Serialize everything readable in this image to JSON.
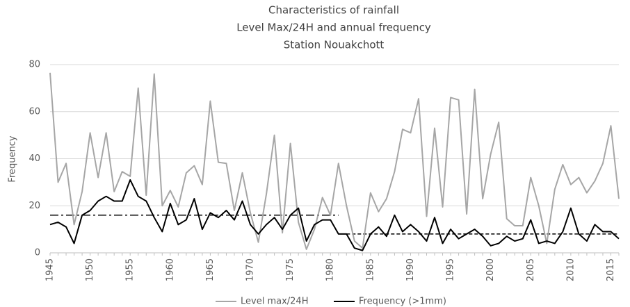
{
  "chart_data": {
    "type": "line",
    "title": [
      "Characteristics of rainfall",
      "Level Max/24H and annual frequency",
      "Station Nouakchott"
    ],
    "y_label": "Frequency",
    "x": [
      1945,
      1946,
      1947,
      1948,
      1949,
      1950,
      1951,
      1952,
      1953,
      1954,
      1955,
      1956,
      1957,
      1958,
      1959,
      1960,
      1961,
      1962,
      1963,
      1964,
      1965,
      1966,
      1967,
      1968,
      1969,
      1970,
      1971,
      1972,
      1973,
      1974,
      1975,
      1976,
      1977,
      1978,
      1979,
      1980,
      1981,
      1982,
      1983,
      1984,
      1985,
      1986,
      1987,
      1988,
      1989,
      1990,
      1991,
      1992,
      1993,
      1994,
      1995,
      1996,
      1997,
      1998,
      1999,
      2000,
      2001,
      2002,
      2003,
      2004,
      2005,
      2006,
      2007,
      2008,
      2009,
      2010,
      2011,
      2012,
      2013,
      2014,
      2015,
      2016
    ],
    "series": [
      {
        "name": "Level max/24H",
        "color": "#a6a6a6",
        "values": [
          76.5,
          30,
          38,
          12,
          26,
          51,
          32,
          51,
          26,
          34.5,
          32.5,
          70,
          24.5,
          76,
          20,
          26.5,
          19.5,
          34,
          37,
          29,
          64.5,
          38.5,
          38,
          18,
          34,
          17,
          4.5,
          25,
          50,
          8.5,
          46.5,
          13,
          1.5,
          10,
          23.5,
          16,
          38,
          20,
          5,
          2,
          25.5,
          17.5,
          23,
          34.5,
          52.5,
          51,
          65.5,
          15.5,
          53,
          19.5,
          66,
          65,
          16.5,
          69.5,
          23,
          42,
          55.5,
          14.5,
          11.5,
          11.5,
          32,
          20,
          4,
          27,
          37.5,
          29,
          32,
          25.5,
          30.5,
          38,
          54,
          23
        ]
      },
      {
        "name": "Frequency (>1mm)",
        "color": "#000000",
        "values": [
          12,
          13,
          11,
          4,
          16,
          18,
          22,
          24,
          22,
          22,
          31,
          24,
          22,
          15,
          9,
          21,
          12,
          14,
          23,
          10,
          17,
          15,
          18,
          14,
          22,
          12,
          8,
          12,
          15,
          10,
          16,
          19,
          5,
          12,
          14,
          14,
          8,
          8,
          2,
          1,
          8,
          11,
          7,
          16,
          9,
          12,
          9,
          5,
          15,
          4,
          10,
          6,
          8,
          10,
          7,
          3,
          4,
          7,
          5,
          6,
          14,
          4,
          5,
          4,
          9,
          19,
          8,
          5,
          12,
          9,
          9,
          6
        ]
      }
    ],
    "reference_lines": [
      {
        "value": 16,
        "x": [
          1945,
          1981
        ],
        "dash": "dashdot"
      },
      {
        "value": 8,
        "x": [
          1982,
          2016
        ],
        "dash": "dashed"
      }
    ],
    "xlim": [
      1945,
      2016
    ],
    "xticks": [
      1945,
      1950,
      1955,
      1960,
      1965,
      1970,
      1975,
      1980,
      1985,
      1990,
      1995,
      2000,
      2005,
      2010,
      2015
    ],
    "ylim": [
      0,
      80
    ],
    "yticks": [
      0,
      20,
      40,
      60,
      80
    ],
    "grid": true,
    "legend": "bottom"
  }
}
